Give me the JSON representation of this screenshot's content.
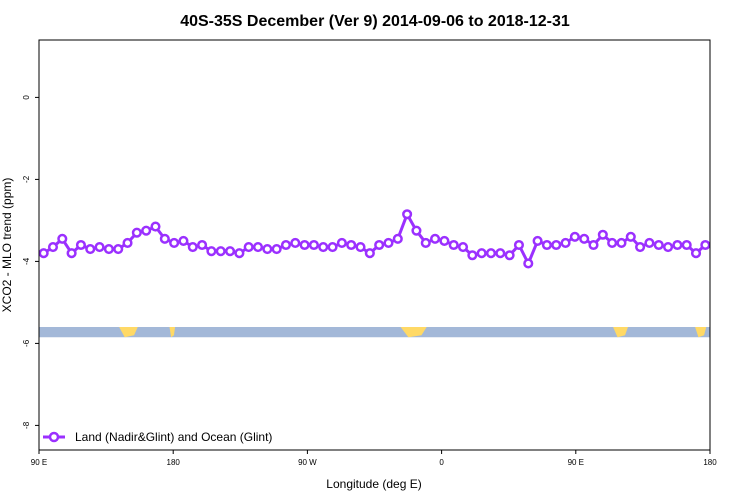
{
  "chart_data": {
    "type": "line",
    "title": "40S-35S December (Ver 9)   2014-09-06 to 2018-12-31",
    "xlabel": "Longitude (deg E)",
    "ylabel": "XCO2 - MLO trend (ppm)",
    "xlim": [
      -90,
      270
    ],
    "ylim": [
      -8.6,
      1.4
    ],
    "x_ticks": [
      {
        "value": -90,
        "label": "90 E"
      },
      {
        "value": -18,
        "label": "180"
      },
      {
        "value": 54,
        "label": "90 W"
      },
      {
        "value": 126,
        "label": "0"
      },
      {
        "value": 198,
        "label": "90 E"
      },
      {
        "value": 270,
        "label": "180"
      }
    ],
    "y_ticks": [
      {
        "value": 0,
        "label": "0"
      },
      {
        "value": -2,
        "label": "-2"
      },
      {
        "value": -4,
        "label": "-4"
      },
      {
        "value": -6,
        "label": "-6"
      },
      {
        "value": -8,
        "label": "-8"
      }
    ],
    "grid": false,
    "legend_position": "bottom-left",
    "series": [
      {
        "name": "Land (Nadir&Glint) and Ocean (Glint)",
        "color": "#9b30ff",
        "x": [
          -87.5,
          -82.5,
          -77.5,
          -72.5,
          -67.5,
          -62.5,
          -57.5,
          -52.5,
          -47.5,
          -42.5,
          -37.5,
          -32.5,
          -27.5,
          -22.5,
          -17.5,
          -12.5,
          -7.5,
          -2.5,
          2.5,
          7.5,
          12.5,
          17.5,
          22.5,
          27.5,
          32.5,
          37.5,
          42.5,
          47.5,
          52.5,
          57.5,
          62.5,
          67.5,
          72.5,
          77.5,
          82.5,
          87.5,
          92.5,
          97.5,
          102.5,
          107.5,
          112.5,
          117.5,
          122.5,
          127.5,
          132.5,
          137.5,
          142.5,
          147.5,
          152.5,
          157.5,
          162.5,
          167.5,
          172.5,
          177.5,
          182.5,
          187.5,
          192.5,
          197.5,
          202.5,
          207.5,
          212.5,
          217.5,
          222.5,
          227.5,
          232.5,
          237.5,
          242.5,
          247.5,
          252.5,
          257.5,
          262.5,
          267.5
        ],
        "values": [
          -3.8,
          -3.65,
          -3.45,
          -3.8,
          -3.6,
          -3.7,
          -3.65,
          -3.7,
          -3.7,
          -3.55,
          -3.3,
          -3.25,
          -3.15,
          -3.45,
          -3.55,
          -3.5,
          -3.65,
          -3.6,
          -3.75,
          -3.75,
          -3.75,
          -3.8,
          -3.65,
          -3.65,
          -3.7,
          -3.7,
          -3.6,
          -3.55,
          -3.6,
          -3.6,
          -3.65,
          -3.65,
          -3.55,
          -3.6,
          -3.65,
          -3.8,
          -3.6,
          -3.55,
          -3.45,
          -2.85,
          -3.25,
          -3.55,
          -3.45,
          -3.5,
          -3.6,
          -3.65,
          -3.85,
          -3.8,
          -3.8,
          -3.8,
          -3.85,
          -3.6,
          -4.05,
          -3.5,
          -3.6,
          -3.6,
          -3.55,
          -3.4,
          -3.45,
          -3.6,
          -3.35,
          -3.55,
          -3.55,
          -3.4,
          -3.65,
          -3.55,
          -3.6,
          -3.65,
          -3.6,
          -3.6,
          -3.8,
          -3.6
        ]
      }
    ],
    "map_strip": {
      "y_top": -5.6,
      "y_bottom": -5.85,
      "ocean_color": "#a3b8d8",
      "land_color": "#ffd966",
      "land_segments": [
        {
          "x0": -47,
          "x1": -37
        },
        {
          "x0": -20,
          "x1": -17
        },
        {
          "x0": 104,
          "x1": 118
        },
        {
          "x0": 218,
          "x1": 226
        },
        {
          "x0": 262,
          "x1": 268
        }
      ]
    }
  }
}
